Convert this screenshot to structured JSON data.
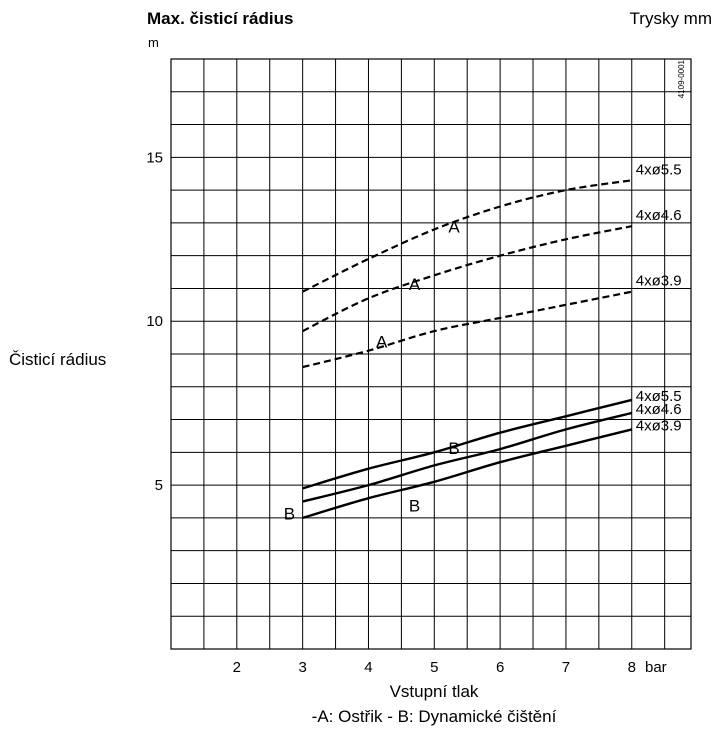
{
  "chart_data": {
    "type": "line",
    "title": "Max. čisticí rádius",
    "right_title": "Trysky mm",
    "y_unit": "m",
    "ylabel": "Čisticí rádius",
    "xlabel": "Vstupní tlak",
    "x_unit": "bar",
    "legend_text": "-A: Ostřik - B: Dynamické čištění",
    "code": "4109-0001",
    "xlim": [
      1,
      8.9
    ],
    "ylim": [
      0,
      18
    ],
    "x_ticks": [
      "2",
      "3",
      "4",
      "5",
      "6",
      "7",
      "8"
    ],
    "y_ticks": [
      "5",
      "10",
      "15"
    ],
    "grid": true,
    "series": [
      {
        "name": "4xø5.5",
        "group": "A",
        "style": "dashed",
        "x": [
          3,
          4,
          5,
          6,
          7,
          8
        ],
        "y": [
          10.9,
          11.9,
          12.8,
          13.5,
          14.0,
          14.3
        ]
      },
      {
        "name": "4xø4.6",
        "group": "A",
        "style": "dashed",
        "x": [
          3,
          4,
          5,
          6,
          7,
          8
        ],
        "y": [
          9.7,
          10.7,
          11.4,
          12.0,
          12.5,
          12.9
        ]
      },
      {
        "name": "4xø3.9",
        "group": "A",
        "style": "dashed",
        "x": [
          3,
          4,
          5,
          6,
          7,
          8
        ],
        "y": [
          8.6,
          9.1,
          9.7,
          10.1,
          10.5,
          10.9
        ]
      },
      {
        "name": "4xø5.5",
        "group": "B",
        "style": "solid",
        "x": [
          3,
          4,
          5,
          6,
          7,
          8
        ],
        "y": [
          4.9,
          5.5,
          6.0,
          6.6,
          7.1,
          7.6
        ]
      },
      {
        "name": "4xø4.6",
        "group": "B",
        "style": "solid",
        "x": [
          3,
          4,
          5,
          6,
          7,
          8
        ],
        "y": [
          4.5,
          5.0,
          5.6,
          6.1,
          6.7,
          7.2
        ]
      },
      {
        "name": "4xø3.9",
        "group": "B",
        "style": "solid",
        "x": [
          3,
          4,
          5,
          6,
          7,
          8
        ],
        "y": [
          4.0,
          4.6,
          5.1,
          5.7,
          6.2,
          6.7
        ]
      }
    ],
    "annotations": [
      {
        "text": "A",
        "x": 5.3,
        "y": 12.7
      },
      {
        "text": "A",
        "x": 4.7,
        "y": 10.95
      },
      {
        "text": "A",
        "x": 4.2,
        "y": 9.2
      },
      {
        "text": "B",
        "x": 5.3,
        "y": 5.95
      },
      {
        "text": "B",
        "x": 2.8,
        "y": 3.95
      },
      {
        "text": "B",
        "x": 4.7,
        "y": 4.2
      }
    ]
  }
}
